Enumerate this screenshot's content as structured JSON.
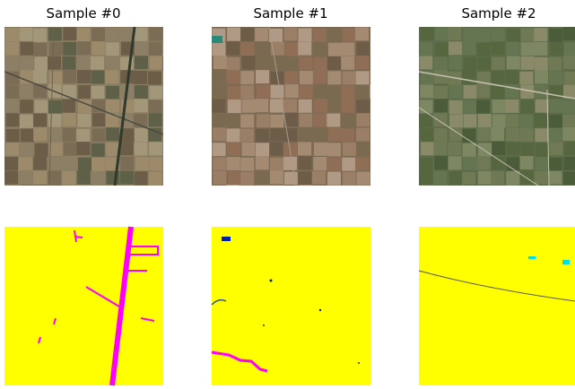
{
  "panels": [
    {
      "title": "Sample #0"
    },
    {
      "title": "Sample #1"
    },
    {
      "title": "Sample #2"
    }
  ]
}
